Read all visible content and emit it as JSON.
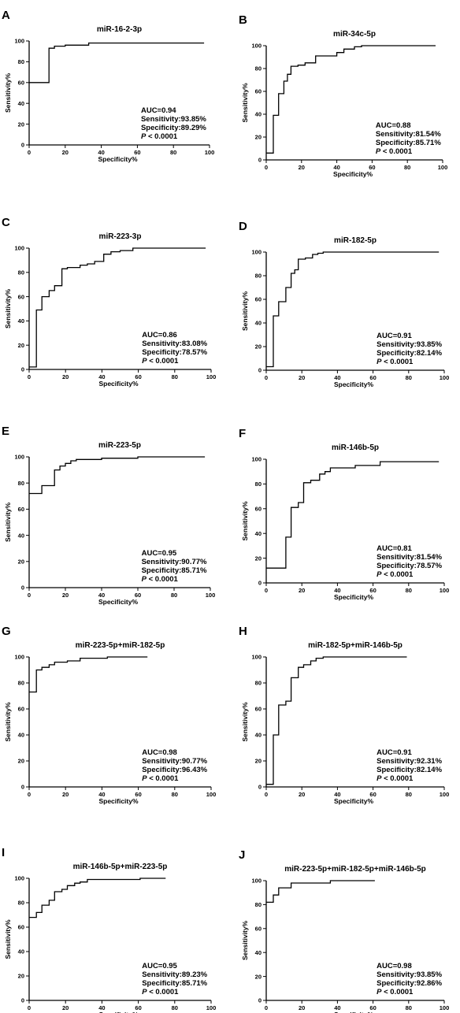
{
  "chart_data": [
    {
      "panel": "A",
      "type": "line",
      "title": "miR-16-2-3p",
      "xlabel": "Specificity%",
      "ylabel": "Sensitivity%",
      "xlim": [
        0,
        100
      ],
      "ylim": [
        0,
        100
      ],
      "xticks": [
        0,
        20,
        40,
        60,
        80,
        100
      ],
      "yticks": [
        0,
        20,
        40,
        60,
        80,
        100
      ],
      "series": [
        {
          "x": [
            0,
            11,
            11,
            14,
            14,
            20,
            20,
            33,
            33,
            97
          ],
          "y": [
            60,
            60,
            93,
            93,
            95,
            95,
            96,
            96,
            98,
            98
          ]
        }
      ],
      "stats": {
        "auc": "AUC=0.94",
        "sensitivity": "Sensitivity:93.85%",
        "specificity": "Specificity:89.29%",
        "p_letter": "P",
        "p_rest": " < 0.0001"
      }
    },
    {
      "panel": "B",
      "type": "line",
      "title": "miR-34c-5p",
      "xlabel": "Specificity%",
      "ylabel": "Sensitivity%",
      "xlim": [
        0,
        100
      ],
      "ylim": [
        0,
        100
      ],
      "xticks": [
        0,
        20,
        40,
        60,
        80,
        100
      ],
      "yticks": [
        0,
        20,
        40,
        60,
        80,
        100
      ],
      "series": [
        {
          "x": [
            0,
            4,
            4,
            7,
            7,
            10,
            10,
            12,
            12,
            14,
            14,
            18,
            18,
            22,
            22,
            28,
            28,
            40,
            40,
            44,
            44,
            50,
            50,
            54,
            54,
            96
          ],
          "y": [
            6,
            6,
            39,
            39,
            58,
            58,
            69,
            69,
            75,
            75,
            82,
            82,
            83,
            83,
            85,
            85,
            91,
            91,
            94,
            94,
            97,
            97,
            99,
            99,
            100,
            100
          ]
        }
      ],
      "stats": {
        "auc": "AUC=0.88",
        "sensitivity": "Sensitivity:81.54%",
        "specificity": "Specificity:85.71%",
        "p_letter": "P",
        "p_rest": " < 0.0001"
      }
    },
    {
      "panel": "C",
      "type": "line",
      "title": "miR-223-3p",
      "xlabel": "Specificity%",
      "ylabel": "Sensitivity%",
      "xlim": [
        0,
        100
      ],
      "ylim": [
        0,
        100
      ],
      "xticks": [
        0,
        20,
        40,
        60,
        80,
        100
      ],
      "yticks": [
        0,
        20,
        40,
        60,
        80,
        100
      ],
      "series": [
        {
          "x": [
            0,
            4,
            4,
            7,
            7,
            11,
            11,
            14,
            14,
            18,
            18,
            21,
            21,
            28,
            28,
            32,
            32,
            36,
            36,
            41,
            41,
            45,
            45,
            50,
            50,
            57,
            57,
            97
          ],
          "y": [
            2,
            2,
            49,
            49,
            60,
            60,
            65,
            65,
            69,
            69,
            83,
            83,
            84,
            84,
            86,
            86,
            87,
            87,
            89,
            89,
            95,
            95,
            97,
            97,
            98,
            98,
            100,
            100
          ]
        }
      ],
      "stats": {
        "auc": "AUC=0.86",
        "sensitivity": "Sensitivity:83.08%",
        "specificity": "Specificity:78.57%",
        "p_letter": "P",
        "p_rest": " < 0.0001"
      }
    },
    {
      "panel": "D",
      "type": "line",
      "title": "miR-182-5p",
      "xlabel": "Specificity%",
      "ylabel": "Sensitivity%",
      "xlim": [
        0,
        100
      ],
      "ylim": [
        0,
        100
      ],
      "xticks": [
        0,
        20,
        40,
        60,
        80,
        100
      ],
      "yticks": [
        0,
        20,
        40,
        60,
        80,
        100
      ],
      "series": [
        {
          "x": [
            0,
            4,
            4,
            7,
            7,
            11,
            11,
            14,
            14,
            16,
            16,
            18,
            18,
            22,
            22,
            26,
            26,
            29,
            29,
            32,
            32,
            97
          ],
          "y": [
            3,
            3,
            46,
            46,
            58,
            58,
            70,
            70,
            82,
            82,
            85,
            85,
            94,
            94,
            95,
            95,
            98,
            98,
            99,
            99,
            100,
            100
          ]
        }
      ],
      "stats": {
        "auc": "AUC=0.91",
        "sensitivity": "Sensitivity:93.85%",
        "specificity": "Specificity:82.14%",
        "p_letter": "P",
        "p_rest": " < 0.0001"
      }
    },
    {
      "panel": "E",
      "type": "line",
      "title": "miR-223-5p",
      "xlabel": "Specificity%",
      "ylabel": "Sensitivity%",
      "xlim": [
        0,
        100
      ],
      "ylim": [
        0,
        100
      ],
      "xticks": [
        0,
        20,
        40,
        60,
        80,
        100
      ],
      "yticks": [
        0,
        20,
        40,
        60,
        80,
        100
      ],
      "series": [
        {
          "x": [
            0,
            7,
            7,
            14,
            14,
            17,
            17,
            20,
            20,
            23,
            23,
            26,
            26,
            40,
            40,
            60,
            60,
            97
          ],
          "y": [
            72,
            72,
            78,
            78,
            90,
            90,
            93,
            93,
            95,
            95,
            97,
            97,
            98,
            98,
            99,
            99,
            100,
            100
          ]
        }
      ],
      "stats": {
        "auc": "AUC=0.95",
        "sensitivity": "Sensitivity:90.77%",
        "specificity": "Specificity:85.71%",
        "p_letter": "P",
        "p_rest": " < 0.0001"
      }
    },
    {
      "panel": "F",
      "type": "line",
      "title": "miR-146b-5p",
      "xlabel": "Specificity%",
      "ylabel": "Sensitivity%",
      "xlim": [
        0,
        100
      ],
      "ylim": [
        0,
        100
      ],
      "xticks": [
        0,
        20,
        40,
        60,
        80,
        100
      ],
      "yticks": [
        0,
        20,
        40,
        60,
        80,
        100
      ],
      "series": [
        {
          "x": [
            0,
            11,
            11,
            14,
            14,
            18,
            18,
            21,
            21,
            25,
            25,
            30,
            30,
            33,
            33,
            36,
            36,
            50,
            50,
            64,
            64,
            97
          ],
          "y": [
            12,
            12,
            37,
            37,
            61,
            61,
            65,
            65,
            81,
            81,
            83,
            83,
            88,
            88,
            90,
            90,
            93,
            93,
            95,
            95,
            98,
            98
          ]
        }
      ],
      "stats": {
        "auc": "AUC=0.81",
        "sensitivity": "Sensitivity:81.54%",
        "specificity": "Specificity:78.57%",
        "p_letter": "P",
        "p_rest": " < 0.0001"
      }
    },
    {
      "panel": "G",
      "type": "line",
      "title": "miR-223-5p+miR-182-5p",
      "xlabel": "Specificity%",
      "ylabel": "Sensitivity%",
      "xlim": [
        0,
        100
      ],
      "ylim": [
        0,
        100
      ],
      "xticks": [
        0,
        20,
        40,
        60,
        80,
        100
      ],
      "yticks": [
        0,
        20,
        40,
        60,
        80,
        100
      ],
      "series": [
        {
          "x": [
            0,
            4,
            4,
            7,
            7,
            11,
            11,
            14,
            14,
            21,
            21,
            28,
            28,
            43,
            43,
            65
          ],
          "y": [
            73,
            73,
            90,
            90,
            92,
            92,
            94,
            94,
            96,
            96,
            97,
            97,
            99,
            99,
            100,
            100
          ]
        }
      ],
      "stats": {
        "auc": "AUC=0.98",
        "sensitivity": "Sensitivity:90.77%",
        "specificity": "Specificity:96.43%",
        "p_letter": "P",
        "p_rest": " < 0.0001"
      }
    },
    {
      "panel": "H",
      "type": "line",
      "title": "miR-182-5p+miR-146b-5p",
      "xlabel": "Specificity%",
      "ylabel": "Sensitivity%",
      "xlim": [
        0,
        100
      ],
      "ylim": [
        0,
        100
      ],
      "xticks": [
        0,
        20,
        40,
        60,
        80,
        100
      ],
      "yticks": [
        0,
        20,
        40,
        60,
        80,
        100
      ],
      "series": [
        {
          "x": [
            0,
            4,
            4,
            7,
            7,
            11,
            11,
            14,
            14,
            18,
            18,
            21,
            21,
            25,
            25,
            28,
            28,
            32,
            32,
            79
          ],
          "y": [
            2,
            2,
            40,
            40,
            63,
            63,
            66,
            66,
            84,
            84,
            92,
            92,
            94,
            94,
            97,
            97,
            99,
            99,
            100,
            100
          ]
        }
      ],
      "stats": {
        "auc": "AUC=0.91",
        "sensitivity": "Sensitivity:92.31%",
        "specificity": "Specificity:82.14%",
        "p_letter": "P",
        "p_rest": " < 0.0001"
      }
    },
    {
      "panel": "I",
      "type": "line",
      "title": "miR-146b-5p+miR-223-5p",
      "xlabel": "Specificity%",
      "ylabel": "Sensitivity%",
      "xlim": [
        0,
        100
      ],
      "ylim": [
        0,
        100
      ],
      "xticks": [
        0,
        20,
        40,
        60,
        80,
        100
      ],
      "yticks": [
        0,
        20,
        40,
        60,
        80,
        100
      ],
      "series": [
        {
          "x": [
            0,
            4,
            4,
            7,
            7,
            11,
            11,
            14,
            14,
            18,
            18,
            21,
            21,
            25,
            25,
            28,
            28,
            32,
            32,
            61,
            61,
            75
          ],
          "y": [
            68,
            68,
            72,
            72,
            78,
            78,
            82,
            82,
            89,
            89,
            91,
            91,
            94,
            94,
            96,
            96,
            97,
            97,
            99,
            99,
            100,
            100
          ]
        }
      ],
      "stats": {
        "auc": "AUC=0.95",
        "sensitivity": "Sensitivity:89.23%",
        "specificity": "Specificity:85.71%",
        "p_letter": "P",
        "p_rest": " < 0.0001"
      }
    },
    {
      "panel": "J",
      "type": "line",
      "title": "miR-223-5p+miR-182-5p+miR-146b-5p",
      "xlabel": "Specificity%",
      "ylabel": "Sensitivity%",
      "xlim": [
        0,
        100
      ],
      "ylim": [
        0,
        100
      ],
      "xticks": [
        0,
        20,
        40,
        60,
        80,
        100
      ],
      "yticks": [
        0,
        20,
        40,
        60,
        80,
        100
      ],
      "series": [
        {
          "x": [
            0,
            4,
            4,
            7,
            7,
            14,
            14,
            36,
            36,
            61
          ],
          "y": [
            82,
            82,
            88,
            88,
            94,
            94,
            98,
            98,
            100,
            100
          ]
        }
      ],
      "stats": {
        "auc": "AUC=0.98",
        "sensitivity": "Sensitivity:93.85%",
        "specificity": "Specificity:92.86%",
        "p_letter": "P",
        "p_rest": " < 0.0001"
      }
    }
  ]
}
